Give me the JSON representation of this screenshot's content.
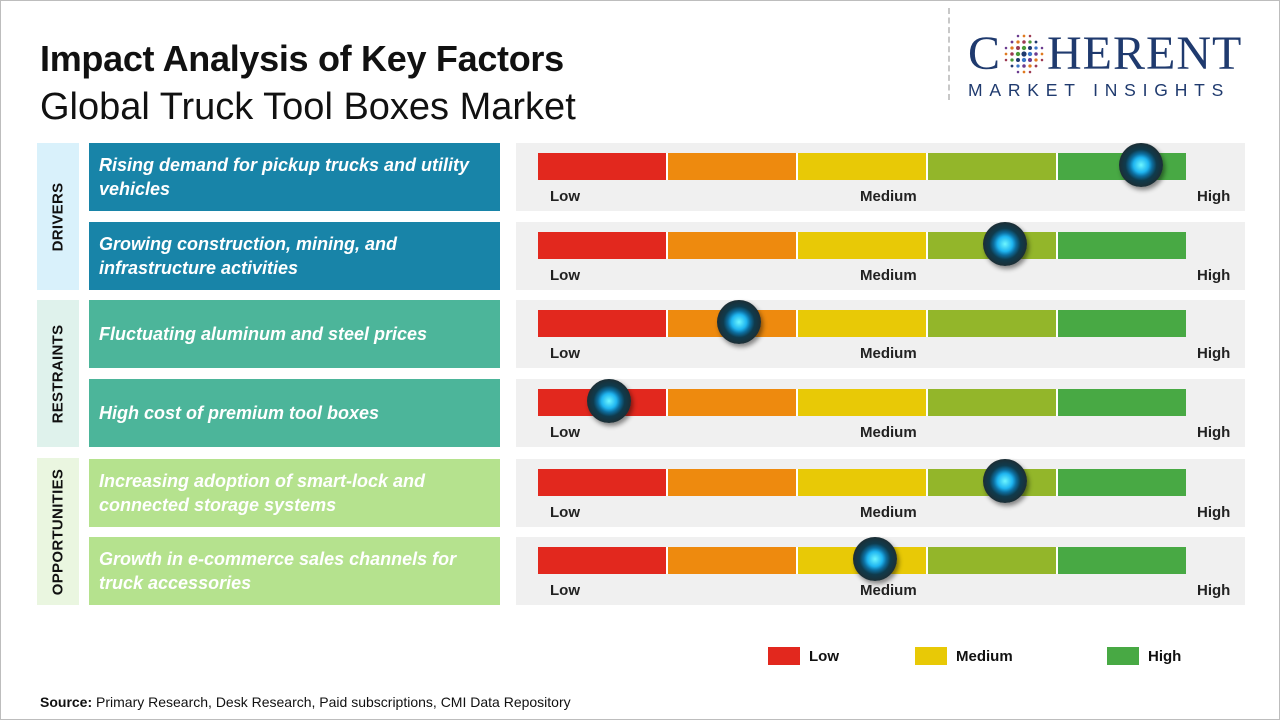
{
  "title": "Impact Analysis of Key Factors",
  "subtitle": "Global Truck Tool Boxes Market",
  "logo": {
    "main_left": "C",
    "main_right": "HERENT",
    "sub": "MARKET INSIGHTS"
  },
  "colors": {
    "low": "#e2281e",
    "low_medium": "#ee8a0e",
    "medium": "#e8c906",
    "medium_high": "#93b62a",
    "high": "#48a944",
    "drivers_box": "#1884a8",
    "drivers_tag": "#d9f1fb",
    "restraints_box": "#4cb59a",
    "restraints_tag": "#dff2ec",
    "opportunities_box": "#b5e28e",
    "opportunities_tag": "#eaf6e0"
  },
  "chart_data": {
    "type": "table",
    "scale_labels": {
      "low": "Low",
      "medium": "Medium",
      "high": "High"
    },
    "groups": [
      {
        "name": "DRIVERS",
        "factors": [
          {
            "text": "Rising demand for pickup trucks and utility vehicles",
            "impact": 0.93
          },
          {
            "text": "Growing construction, mining, and infrastructure activities",
            "impact": 0.72
          }
        ]
      },
      {
        "name": "RESTRAINTS",
        "factors": [
          {
            "text": "Fluctuating aluminum and steel prices",
            "impact": 0.31
          },
          {
            "text": "High cost of premium tool boxes",
            "impact": 0.11
          }
        ]
      },
      {
        "name": "OPPORTUNITIES",
        "factors": [
          {
            "text": "Increasing adoption of smart-lock and connected storage systems",
            "impact": 0.72
          },
          {
            "text": "Growth in e-commerce sales channels for truck accessories",
            "impact": 0.52
          }
        ]
      }
    ],
    "legend": [
      "Low",
      "Medium",
      "High"
    ]
  },
  "source": {
    "label": "Source:",
    "text": "Primary Research, Desk Research, Paid subscriptions, CMI Data Repository"
  }
}
